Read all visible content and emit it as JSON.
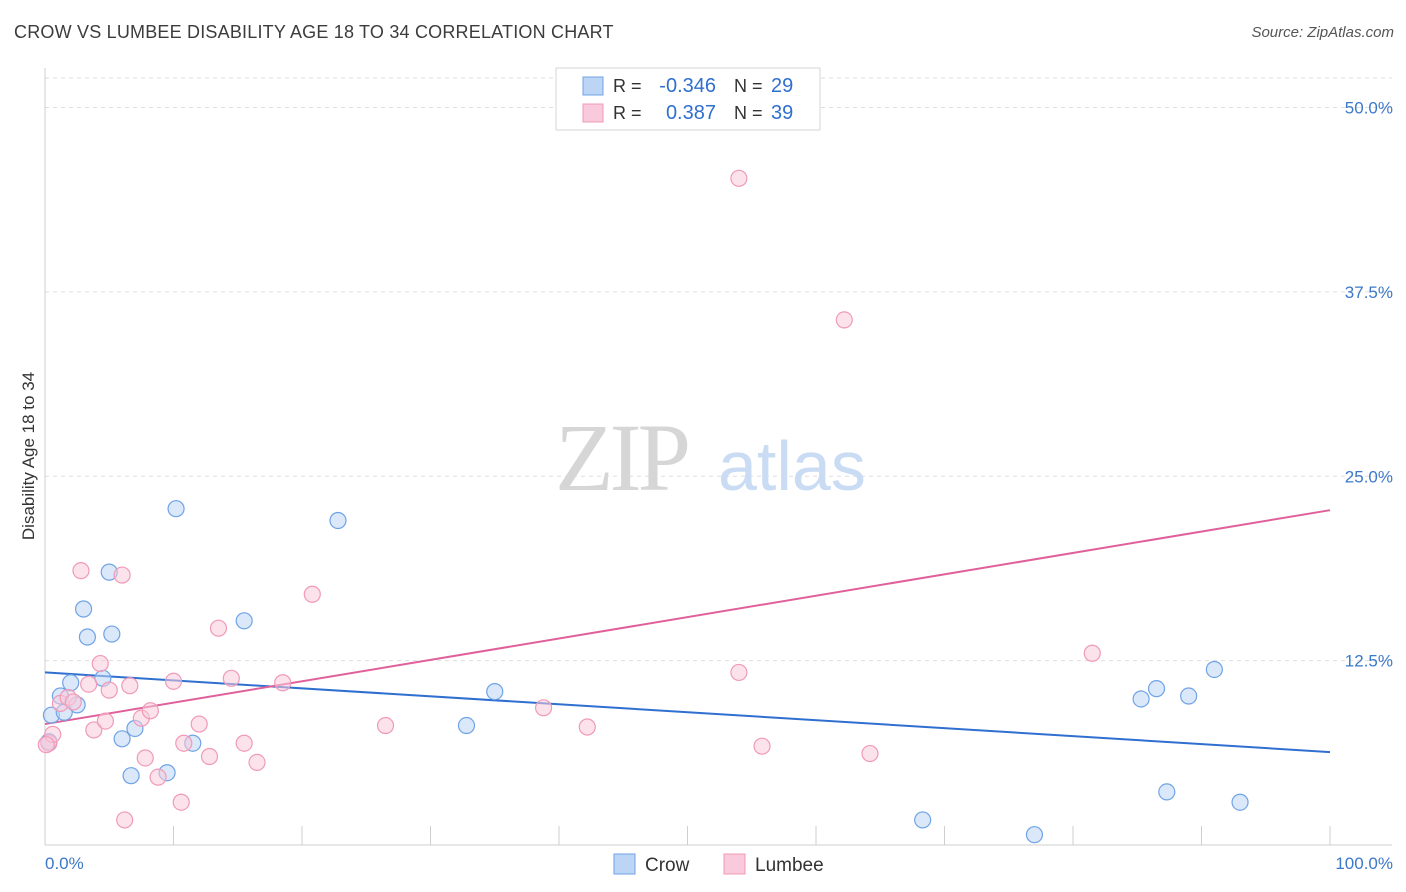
{
  "chart_data": {
    "type": "scatter",
    "title": "CROW VS LUMBEE DISABILITY AGE 18 TO 34 CORRELATION CHART",
    "source": "Source: ZipAtlas.com",
    "xlabel": "",
    "ylabel": "Disability Age 18 to 34",
    "xlim": [
      0,
      100
    ],
    "ylim": [
      0,
      52
    ],
    "x_tick_labels": [
      "0.0%",
      "100.0%"
    ],
    "y_ticks": [
      12.5,
      25.0,
      37.5,
      50.0
    ],
    "y_tick_labels": [
      "12.5%",
      "25.0%",
      "37.5%",
      "50.0%"
    ],
    "watermark": "ZIPatlas",
    "legend_position": "top-center",
    "series": [
      {
        "name": "Crow",
        "color": "#6fa3e6",
        "fill": "#bcd5f5",
        "line_color": "#2f6fcf",
        "R": "-0.346",
        "N": "29",
        "trend": [
          [
            0,
            11.7
          ],
          [
            100,
            6.3
          ]
        ],
        "points": [
          [
            0.5,
            8.8
          ],
          [
            1.5,
            9.0
          ],
          [
            1.2,
            10.1
          ],
          [
            2.0,
            11.0
          ],
          [
            2.5,
            9.5
          ],
          [
            3.0,
            16.0
          ],
          [
            3.3,
            14.1
          ],
          [
            4.5,
            11.3
          ],
          [
            5.0,
            18.5
          ],
          [
            5.2,
            14.3
          ],
          [
            6.0,
            7.2
          ],
          [
            6.7,
            4.7
          ],
          [
            7.0,
            7.9
          ],
          [
            9.5,
            4.9
          ],
          [
            10.2,
            22.8
          ],
          [
            11.5,
            6.9
          ],
          [
            15.5,
            15.2
          ],
          [
            22.8,
            22.0
          ],
          [
            32.8,
            8.1
          ],
          [
            35.0,
            10.4
          ],
          [
            68.3,
            1.7
          ],
          [
            77.0,
            0.7
          ],
          [
            85.3,
            9.9
          ],
          [
            86.5,
            10.6
          ],
          [
            87.3,
            3.6
          ],
          [
            89.0,
            10.1
          ],
          [
            91.0,
            11.9
          ],
          [
            93.0,
            2.9
          ],
          [
            0.3,
            7.0
          ]
        ]
      },
      {
        "name": "Lumbee",
        "color": "#f09ab8",
        "fill": "#f8cadb",
        "line_color": "#e0609a",
        "R": "0.387",
        "N": "39",
        "trend": [
          [
            0,
            8.2
          ],
          [
            100,
            22.7
          ]
        ],
        "points": [
          [
            0.3,
            6.9
          ],
          [
            0.6,
            7.5
          ],
          [
            1.2,
            9.6
          ],
          [
            1.8,
            10.0
          ],
          [
            2.2,
            9.7
          ],
          [
            2.8,
            18.6
          ],
          [
            3.4,
            10.9
          ],
          [
            3.8,
            7.8
          ],
          [
            4.3,
            12.3
          ],
          [
            4.7,
            8.4
          ],
          [
            5.0,
            10.5
          ],
          [
            6.0,
            18.3
          ],
          [
            6.6,
            10.8
          ],
          [
            7.5,
            8.6
          ],
          [
            7.8,
            5.9
          ],
          [
            8.2,
            9.1
          ],
          [
            8.8,
            4.6
          ],
          [
            10.0,
            11.1
          ],
          [
            10.6,
            2.9
          ],
          [
            10.8,
            6.9
          ],
          [
            12.0,
            8.2
          ],
          [
            12.8,
            6.0
          ],
          [
            13.5,
            14.7
          ],
          [
            14.5,
            11.3
          ],
          [
            15.5,
            6.9
          ],
          [
            16.5,
            5.6
          ],
          [
            18.5,
            11.0
          ],
          [
            20.8,
            17.0
          ],
          [
            26.5,
            8.1
          ],
          [
            38.8,
            9.3
          ],
          [
            42.2,
            8.0
          ],
          [
            54.0,
            45.2
          ],
          [
            54.0,
            11.7
          ],
          [
            55.8,
            6.7
          ],
          [
            62.2,
            35.6
          ],
          [
            64.2,
            6.2
          ],
          [
            81.5,
            13.0
          ],
          [
            6.2,
            1.7
          ],
          [
            0.1,
            6.8
          ]
        ]
      }
    ]
  }
}
